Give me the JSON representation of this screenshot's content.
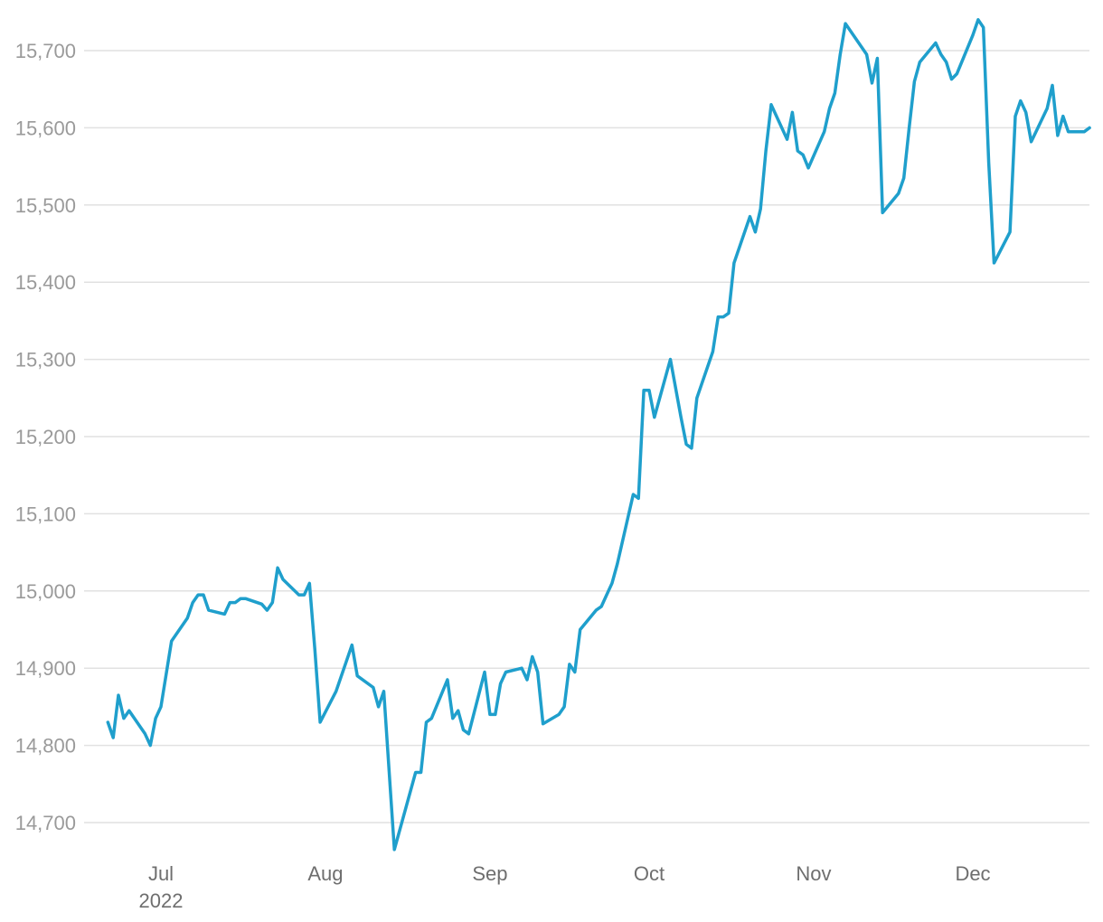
{
  "chart_data": {
    "type": "line",
    "title": "",
    "xlabel": "",
    "ylabel": "",
    "ylim": [
      14665,
      15740
    ],
    "y_ticks": [
      14700,
      14800,
      14900,
      15000,
      15100,
      15200,
      15300,
      15400,
      15500,
      15600,
      15700
    ],
    "y_tick_labels": [
      "14,700",
      "14,800",
      "14,900",
      "15,000",
      "15,100",
      "15,200",
      "15,300",
      "15,400",
      "15,500",
      "15,600",
      "15,700"
    ],
    "x_ticks": [
      {
        "date": "2022-07-01",
        "label": "Jul"
      },
      {
        "date": "2022-08-01",
        "label": "Aug"
      },
      {
        "date": "2022-09-01",
        "label": "Sep"
      },
      {
        "date": "2022-10-01",
        "label": "Oct"
      },
      {
        "date": "2022-11-01",
        "label": "Nov"
      },
      {
        "date": "2022-12-01",
        "label": "Dec"
      }
    ],
    "x_year_label": "2022",
    "grid": true,
    "legend": "none",
    "color": "#1f9fcc",
    "series": [
      {
        "points": [
          [
            "2022-06-21",
            14830
          ],
          [
            "2022-06-22",
            14810
          ],
          [
            "2022-06-23",
            14865
          ],
          [
            "2022-06-24",
            14835
          ],
          [
            "2022-06-25",
            14845
          ],
          [
            "2022-06-28",
            14815
          ],
          [
            "2022-06-29",
            14800
          ],
          [
            "2022-06-30",
            14835
          ],
          [
            "2022-07-01",
            14850
          ],
          [
            "2022-07-03",
            14935
          ],
          [
            "2022-07-06",
            14965
          ],
          [
            "2022-07-07",
            14985
          ],
          [
            "2022-07-08",
            14995
          ],
          [
            "2022-07-09",
            14995
          ],
          [
            "2022-07-10",
            14975
          ],
          [
            "2022-07-13",
            14970
          ],
          [
            "2022-07-14",
            14985
          ],
          [
            "2022-07-15",
            14985
          ],
          [
            "2022-07-16",
            14990
          ],
          [
            "2022-07-17",
            14990
          ],
          [
            "2022-07-20",
            14983
          ],
          [
            "2022-07-21",
            14975
          ],
          [
            "2022-07-22",
            14985
          ],
          [
            "2022-07-23",
            15030
          ],
          [
            "2022-07-24",
            15015
          ],
          [
            "2022-07-27",
            14995
          ],
          [
            "2022-07-28",
            14995
          ],
          [
            "2022-07-29",
            15010
          ],
          [
            "2022-07-30",
            14925
          ],
          [
            "2022-07-31",
            14830
          ],
          [
            "2022-08-03",
            14870
          ],
          [
            "2022-08-06",
            14930
          ],
          [
            "2022-08-07",
            14890
          ],
          [
            "2022-08-10",
            14875
          ],
          [
            "2022-08-11",
            14850
          ],
          [
            "2022-08-12",
            14870
          ],
          [
            "2022-08-14",
            14665
          ],
          [
            "2022-08-18",
            14765
          ],
          [
            "2022-08-19",
            14765
          ],
          [
            "2022-08-20",
            14830
          ],
          [
            "2022-08-21",
            14835
          ],
          [
            "2022-08-24",
            14885
          ],
          [
            "2022-08-25",
            14835
          ],
          [
            "2022-08-26",
            14845
          ],
          [
            "2022-08-27",
            14820
          ],
          [
            "2022-08-28",
            14815
          ],
          [
            "2022-08-31",
            14895
          ],
          [
            "2022-09-01",
            14840
          ],
          [
            "2022-09-02",
            14840
          ],
          [
            "2022-09-03",
            14880
          ],
          [
            "2022-09-04",
            14895
          ],
          [
            "2022-09-07",
            14900
          ],
          [
            "2022-09-08",
            14885
          ],
          [
            "2022-09-09",
            14915
          ],
          [
            "2022-09-10",
            14895
          ],
          [
            "2022-09-11",
            14828
          ],
          [
            "2022-09-14",
            14840
          ],
          [
            "2022-09-15",
            14850
          ],
          [
            "2022-09-16",
            14905
          ],
          [
            "2022-09-17",
            14895
          ],
          [
            "2022-09-18",
            14950
          ],
          [
            "2022-09-21",
            14975
          ],
          [
            "2022-09-22",
            14980
          ],
          [
            "2022-09-23",
            14995
          ],
          [
            "2022-09-24",
            15010
          ],
          [
            "2022-09-25",
            15035
          ],
          [
            "2022-09-28",
            15125
          ],
          [
            "2022-09-29",
            15120
          ],
          [
            "2022-09-30",
            15260
          ],
          [
            "2022-10-01",
            15260
          ],
          [
            "2022-10-02",
            15225
          ],
          [
            "2022-10-05",
            15300
          ],
          [
            "2022-10-07",
            15225
          ],
          [
            "2022-10-08",
            15190
          ],
          [
            "2022-10-09",
            15185
          ],
          [
            "2022-10-10",
            15250
          ],
          [
            "2022-10-13",
            15310
          ],
          [
            "2022-10-14",
            15355
          ],
          [
            "2022-10-15",
            15355
          ],
          [
            "2022-10-16",
            15360
          ],
          [
            "2022-10-17",
            15425
          ],
          [
            "2022-10-20",
            15485
          ],
          [
            "2022-10-21",
            15465
          ],
          [
            "2022-10-22",
            15495
          ],
          [
            "2022-10-23",
            15570
          ],
          [
            "2022-10-24",
            15630
          ],
          [
            "2022-10-27",
            15585
          ],
          [
            "2022-10-28",
            15620
          ],
          [
            "2022-10-29",
            15570
          ],
          [
            "2022-10-30",
            15565
          ],
          [
            "2022-10-31",
            15548
          ],
          [
            "2022-11-03",
            15595
          ],
          [
            "2022-11-04",
            15625
          ],
          [
            "2022-11-05",
            15645
          ],
          [
            "2022-11-06",
            15695
          ],
          [
            "2022-11-07",
            15735
          ],
          [
            "2022-11-11",
            15695
          ],
          [
            "2022-11-12",
            15658
          ],
          [
            "2022-11-13",
            15690
          ],
          [
            "2022-11-14",
            15490
          ],
          [
            "2022-11-17",
            15515
          ],
          [
            "2022-11-18",
            15535
          ],
          [
            "2022-11-19",
            15600
          ],
          [
            "2022-11-20",
            15660
          ],
          [
            "2022-11-21",
            15685
          ],
          [
            "2022-11-24",
            15710
          ],
          [
            "2022-11-25",
            15695
          ],
          [
            "2022-11-26",
            15685
          ],
          [
            "2022-11-27",
            15663
          ],
          [
            "2022-11-28",
            15670
          ],
          [
            "2022-12-01",
            15720
          ],
          [
            "2022-12-02",
            15740
          ],
          [
            "2022-12-03",
            15730
          ],
          [
            "2022-12-04",
            15555
          ],
          [
            "2022-12-05",
            15425
          ],
          [
            "2022-12-08",
            15465
          ],
          [
            "2022-12-09",
            15615
          ],
          [
            "2022-12-10",
            15635
          ],
          [
            "2022-12-11",
            15620
          ],
          [
            "2022-12-12",
            15582
          ],
          [
            "2022-12-15",
            15625
          ],
          [
            "2022-12-16",
            15655
          ],
          [
            "2022-12-17",
            15590
          ],
          [
            "2022-12-18",
            15615
          ],
          [
            "2022-12-19",
            15595
          ],
          [
            "2022-12-22",
            15595
          ],
          [
            "2022-12-23",
            15600
          ]
        ]
      }
    ]
  }
}
